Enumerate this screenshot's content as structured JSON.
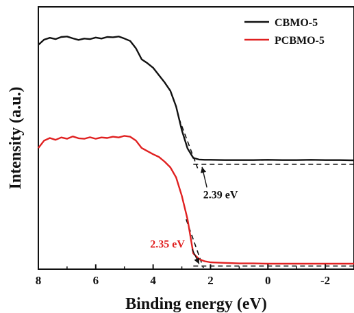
{
  "chart_data": {
    "type": "line",
    "title": "",
    "xlabel": "Binding energy (eV)",
    "ylabel": "Intensity (a.u.)",
    "xlim": [
      8,
      -3
    ],
    "x_reversed": true,
    "ylim": [
      0,
      1
    ],
    "y_ticks_shown": false,
    "grid": false,
    "legend_position": "top-right",
    "x_ticks": [
      8,
      6,
      4,
      2,
      0,
      -2
    ],
    "x_tick_labels": [
      "8",
      "6",
      "4",
      "2",
      "0",
      "-2"
    ],
    "series": [
      {
        "name": "CBMO-5",
        "color": "#111111",
        "x": [
          8.0,
          7.8,
          7.6,
          7.4,
          7.2,
          7.0,
          6.8,
          6.6,
          6.4,
          6.2,
          6.0,
          5.8,
          5.6,
          5.4,
          5.2,
          5.0,
          4.8,
          4.6,
          4.4,
          4.2,
          4.0,
          3.8,
          3.6,
          3.4,
          3.2,
          3.0,
          2.8,
          2.6,
          2.4,
          2.2,
          2.0,
          1.5,
          1.0,
          0.5,
          0.0,
          -0.5,
          -1.0,
          -1.5,
          -2.0,
          -2.5,
          -3.0
        ],
        "y": [
          0.855,
          0.875,
          0.882,
          0.877,
          0.885,
          0.887,
          0.88,
          0.874,
          0.879,
          0.877,
          0.883,
          0.879,
          0.885,
          0.884,
          0.887,
          0.879,
          0.87,
          0.842,
          0.8,
          0.785,
          0.768,
          0.74,
          0.712,
          0.68,
          0.62,
          0.53,
          0.46,
          0.424,
          0.418,
          0.417,
          0.417,
          0.416,
          0.416,
          0.416,
          0.417,
          0.416,
          0.416,
          0.417,
          0.416,
          0.416,
          0.415
        ]
      },
      {
        "name": "PCBMO-5",
        "color": "#e02020",
        "x": [
          8.0,
          7.8,
          7.6,
          7.4,
          7.2,
          7.0,
          6.8,
          6.6,
          6.4,
          6.2,
          6.0,
          5.8,
          5.6,
          5.4,
          5.2,
          5.0,
          4.8,
          4.6,
          4.4,
          4.2,
          4.0,
          3.8,
          3.6,
          3.4,
          3.2,
          3.0,
          2.8,
          2.6,
          2.4,
          2.2,
          2.0,
          1.5,
          1.0,
          0.5,
          0.0,
          -0.5,
          -1.0,
          -1.5,
          -2.0,
          -2.5,
          -3.0
        ],
        "y": [
          0.462,
          0.49,
          0.5,
          0.493,
          0.502,
          0.497,
          0.506,
          0.499,
          0.497,
          0.503,
          0.497,
          0.502,
          0.5,
          0.505,
          0.502,
          0.508,
          0.505,
          0.49,
          0.462,
          0.45,
          0.438,
          0.428,
          0.41,
          0.388,
          0.35,
          0.28,
          0.19,
          0.06,
          0.038,
          0.03,
          0.026,
          0.024,
          0.022,
          0.022,
          0.021,
          0.021,
          0.021,
          0.021,
          0.021,
          0.021,
          0.021
        ]
      }
    ],
    "fit_lines": [
      {
        "color": "#111111",
        "dash": true,
        "x": [
          3.1,
          2.45
        ],
        "y": [
          0.575,
          0.385
        ]
      },
      {
        "color": "#111111",
        "dash": true,
        "x": [
          2.6,
          -3.0
        ],
        "y": [
          0.4,
          0.4
        ]
      },
      {
        "color": "#111111",
        "dash": true,
        "x": [
          2.85,
          2.25
        ],
        "y": [
          0.19,
          0.005
        ]
      },
      {
        "color": "#111111",
        "dash": true,
        "x": [
          2.6,
          -3.0
        ],
        "y": [
          0.012,
          0.012
        ]
      }
    ],
    "annotations": [
      {
        "text": "2.39 eV",
        "color": "#111111",
        "x": 1.65,
        "y": 0.27,
        "arrow_to_x": 2.39,
        "arrow_to_y": 0.4
      },
      {
        "text": "2.35 eV",
        "color": "#e02020",
        "x": 3.5,
        "y": 0.082,
        "arrow_to_x": 2.35,
        "arrow_to_y": 0.012
      }
    ]
  }
}
